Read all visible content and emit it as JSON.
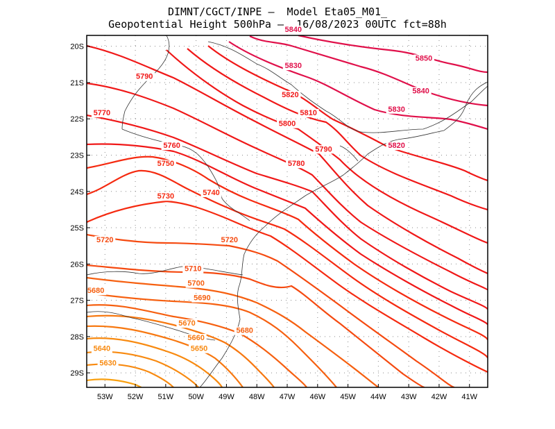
{
  "header": {
    "line1": "DIMNT/CGCT/INPE –  Model Eta05_M01_",
    "line2": "Geopotential Height 500hPa –  16/08/2023 00UTC fct=88h"
  },
  "axes": {
    "lat_labels": [
      "20S",
      "21S",
      "22S",
      "23S",
      "24S",
      "25S",
      "26S",
      "27S",
      "28S",
      "29S"
    ],
    "lon_labels": [
      "53W",
      "52W",
      "51W",
      "50W",
      "49W",
      "48W",
      "47W",
      "46W",
      "45W",
      "44W",
      "43W",
      "42W",
      "41W"
    ]
  },
  "chart_data": {
    "type": "contour",
    "variable": "Geopotential Height 500hPa",
    "units": "gpm",
    "extent": {
      "lon": [
        -53.6,
        -40.4
      ],
      "lat": [
        -29.4,
        -19.7
      ]
    },
    "contour_interval": 10,
    "labels": [
      {
        "text": "5840",
        "lon": -46.8,
        "lat": -19.6,
        "color": "#e0104a"
      },
      {
        "text": "5850",
        "lon": -42.5,
        "lat": -20.4,
        "color": "#e0104a"
      },
      {
        "text": "5830",
        "lon": -46.8,
        "lat": -20.6,
        "color": "#e0104a"
      },
      {
        "text": "5840",
        "lon": -42.6,
        "lat": -21.3,
        "color": "#e0104a"
      },
      {
        "text": "5790",
        "lon": -51.7,
        "lat": -20.9,
        "color": "#f01818"
      },
      {
        "text": "5820",
        "lon": -46.9,
        "lat": -21.4,
        "color": "#f01818"
      },
      {
        "text": "5830",
        "lon": -43.4,
        "lat": -21.8,
        "color": "#e0104a"
      },
      {
        "text": "5770",
        "lon": -53.1,
        "lat": -21.9,
        "color": "#f01818"
      },
      {
        "text": "5810",
        "lon": -46.3,
        "lat": -21.9,
        "color": "#f01818"
      },
      {
        "text": "5800",
        "lon": -47.0,
        "lat": -22.2,
        "color": "#f01818"
      },
      {
        "text": "5760",
        "lon": -50.8,
        "lat": -22.8,
        "color": "#f01818"
      },
      {
        "text": "5790",
        "lon": -45.8,
        "lat": -22.9,
        "color": "#f01818"
      },
      {
        "text": "5820",
        "lon": -43.4,
        "lat": -22.8,
        "color": "#e0104a"
      },
      {
        "text": "5750",
        "lon": -51.0,
        "lat": -23.3,
        "color": "#f52a10"
      },
      {
        "text": "5780",
        "lon": -46.7,
        "lat": -23.3,
        "color": "#f01818"
      },
      {
        "text": "5740",
        "lon": -49.5,
        "lat": -24.1,
        "color": "#f52a10"
      },
      {
        "text": "5730",
        "lon": -51.0,
        "lat": -24.2,
        "color": "#f52a10"
      },
      {
        "text": "5720",
        "lon": -53.0,
        "lat": -25.4,
        "color": "#f54a10"
      },
      {
        "text": "5720",
        "lon": -48.9,
        "lat": -25.4,
        "color": "#f54a10"
      },
      {
        "text": "5710",
        "lon": -50.1,
        "lat": -26.2,
        "color": "#f54a10"
      },
      {
        "text": "5700",
        "lon": -50.0,
        "lat": -26.6,
        "color": "#f66010"
      },
      {
        "text": "5680",
        "lon": -53.3,
        "lat": -26.8,
        "color": "#f66010"
      },
      {
        "text": "5690",
        "lon": -49.8,
        "lat": -27.0,
        "color": "#f66010"
      },
      {
        "text": "5670",
        "lon": -50.3,
        "lat": -27.7,
        "color": "#f77810"
      },
      {
        "text": "5680",
        "lon": -48.4,
        "lat": -27.9,
        "color": "#f66010"
      },
      {
        "text": "5660",
        "lon": -50.0,
        "lat": -28.1,
        "color": "#f77810"
      },
      {
        "text": "5640",
        "lon": -53.1,
        "lat": -28.4,
        "color": "#f88a10"
      },
      {
        "text": "5650",
        "lon": -49.9,
        "lat": -28.4,
        "color": "#f88a10"
      },
      {
        "text": "5630",
        "lon": -52.9,
        "lat": -28.8,
        "color": "#f88a10"
      }
    ]
  }
}
